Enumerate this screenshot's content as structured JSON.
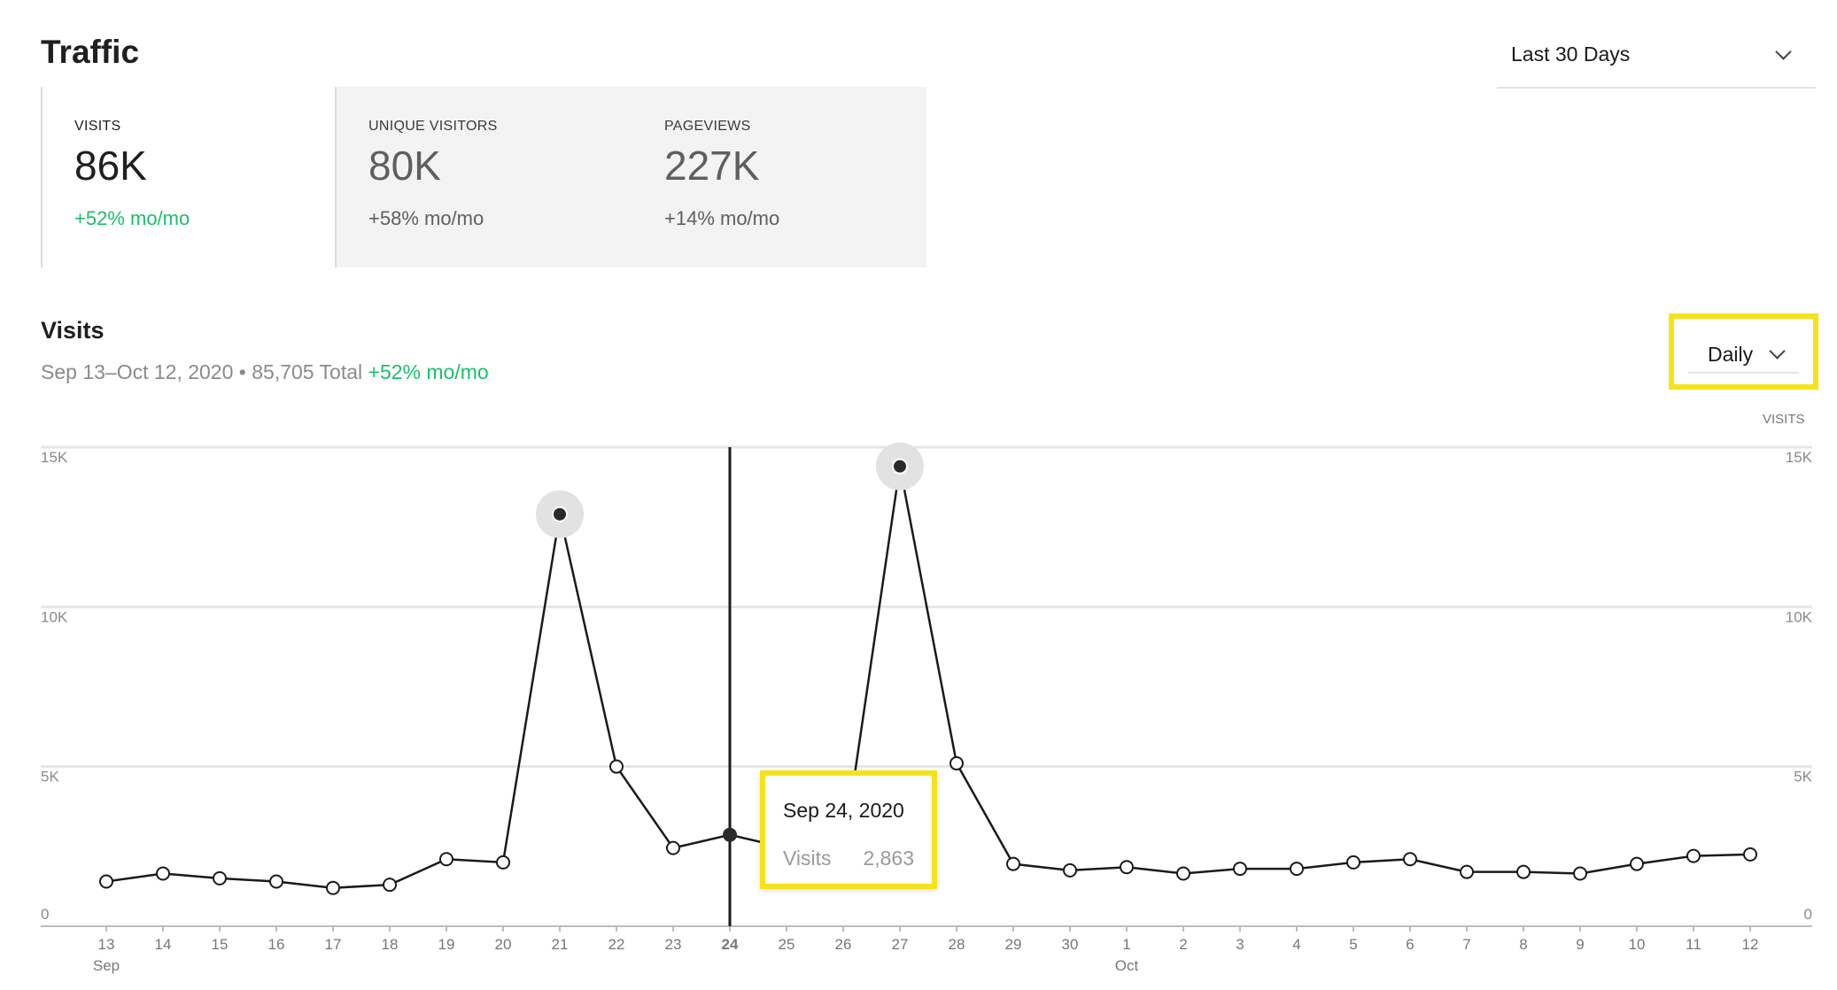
{
  "page": {
    "title": "Traffic"
  },
  "range_select": {
    "value": "Last 30 Days"
  },
  "stats": [
    {
      "label": "VISITS",
      "value": "86K",
      "change": "+52% mo/mo"
    },
    {
      "label": "UNIQUE VISITORS",
      "value": "80K",
      "change": "+58% mo/mo"
    },
    {
      "label": "PAGEVIEWS",
      "value": "227K",
      "change": "+14% mo/mo"
    }
  ],
  "section": {
    "title": "Visits",
    "date_range": "Sep 13–Oct 12, 2020",
    "separator": "•",
    "total": "85,705 Total",
    "change": "+52% mo/mo"
  },
  "interval_select": {
    "value": "Daily"
  },
  "axis_title": "VISITS",
  "tooltip": {
    "date": "Sep 24, 2020",
    "series": "Visits",
    "value": "2,863"
  },
  "colors": {
    "positive": "#1bbf6a",
    "highlight": "#f7e21a",
    "line": "#1a1a1a",
    "grid": "#e6e6e6"
  },
  "chart_data": {
    "type": "line",
    "title": "",
    "xlabel": "",
    "ylabel": "VISITS",
    "ylim": [
      0,
      15000
    ],
    "yticks": [
      0,
      5000,
      10000,
      15000
    ],
    "ytick_labels": [
      "0",
      "5K",
      "10K",
      "15K"
    ],
    "grid": true,
    "categories": [
      "13",
      "14",
      "15",
      "16",
      "17",
      "18",
      "19",
      "20",
      "21",
      "22",
      "23",
      "24",
      "25",
      "26",
      "27",
      "28",
      "29",
      "30",
      "1",
      "2",
      "3",
      "4",
      "5",
      "6",
      "7",
      "8",
      "9",
      "10",
      "11",
      "12"
    ],
    "month_labels": [
      {
        "at": "13",
        "label": "Sep"
      },
      {
        "at": "1",
        "label": "Oct"
      }
    ],
    "highlighted_category": "24",
    "peak_categories": [
      "21",
      "27"
    ],
    "series": [
      {
        "name": "Visits",
        "values": [
          1400,
          1650,
          1500,
          1400,
          1200,
          1300,
          2100,
          2000,
          12900,
          5000,
          2450,
          2863,
          2450,
          2300,
          14400,
          5100,
          1950,
          1750,
          1850,
          1650,
          1800,
          1800,
          2000,
          2100,
          1700,
          1700,
          1650,
          1950,
          2200,
          2250
        ]
      }
    ]
  }
}
